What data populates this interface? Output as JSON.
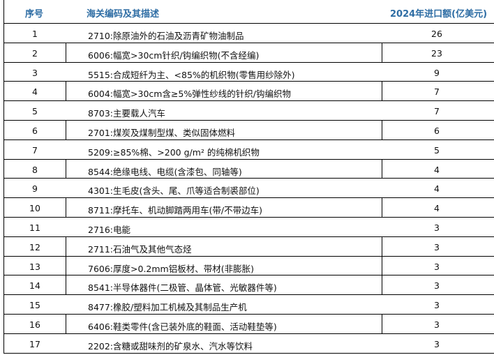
{
  "header": {
    "index": "序号",
    "description": "海关编码及其描述",
    "value": "2024年进口额(亿美元)"
  },
  "rows": [
    {
      "index": "1",
      "description": "2710:除原油外的石油及沥青矿物油制品",
      "value": "26"
    },
    {
      "index": "2",
      "description": "6006:幅宽>30cm针织/钩编织物(不含经编)",
      "value": "23"
    },
    {
      "index": "3",
      "description": "5515:合成短纤为主、<85%的机织物(零售用纱除外)",
      "value": "9"
    },
    {
      "index": "4",
      "description": "6004:幅宽>30cm含≥5%弹性纱线的针织/钩编织物",
      "value": "7"
    },
    {
      "index": "5",
      "description": "8703:主要载人汽车",
      "value": "7"
    },
    {
      "index": "6",
      "description": "2701:煤炭及煤制型煤、类似固体燃料",
      "value": "6"
    },
    {
      "index": "7",
      "description": "5209:≥85%棉、>200 g/m² 的纯棉机织物",
      "value": "5"
    },
    {
      "index": "8",
      "description": "8544:绝缘电线、电缆(含漆包、同轴等)",
      "value": "4"
    },
    {
      "index": "9",
      "description": "4301:生毛皮(含头、尾、爪等适合制裘部位)",
      "value": "4"
    },
    {
      "index": "10",
      "description": "8711:摩托车、机动脚踏两用车(带/不带边车)",
      "value": "4"
    },
    {
      "index": "11",
      "description": "2716:电能",
      "value": "3"
    },
    {
      "index": "12",
      "description": "2711:石油气及其他气态烃",
      "value": "3"
    },
    {
      "index": "13",
      "description": "7606:厚度>0.2mm铝板材、带材(非膨胀)",
      "value": "3"
    },
    {
      "index": "14",
      "description": "8541:半导体器件(二极管、晶体管、光敏器件等)",
      "value": "3"
    },
    {
      "index": "15",
      "description": "8477:橡胶/塑料加工机械及其制品生产机",
      "value": "3"
    },
    {
      "index": "16",
      "description": "6406:鞋类零件(含已装外底的鞋面、活动鞋垫等)",
      "value": "3"
    },
    {
      "index": "17",
      "description": "2202:含糖或甜味剂的矿泉水、汽水等饮料",
      "value": "3"
    }
  ]
}
